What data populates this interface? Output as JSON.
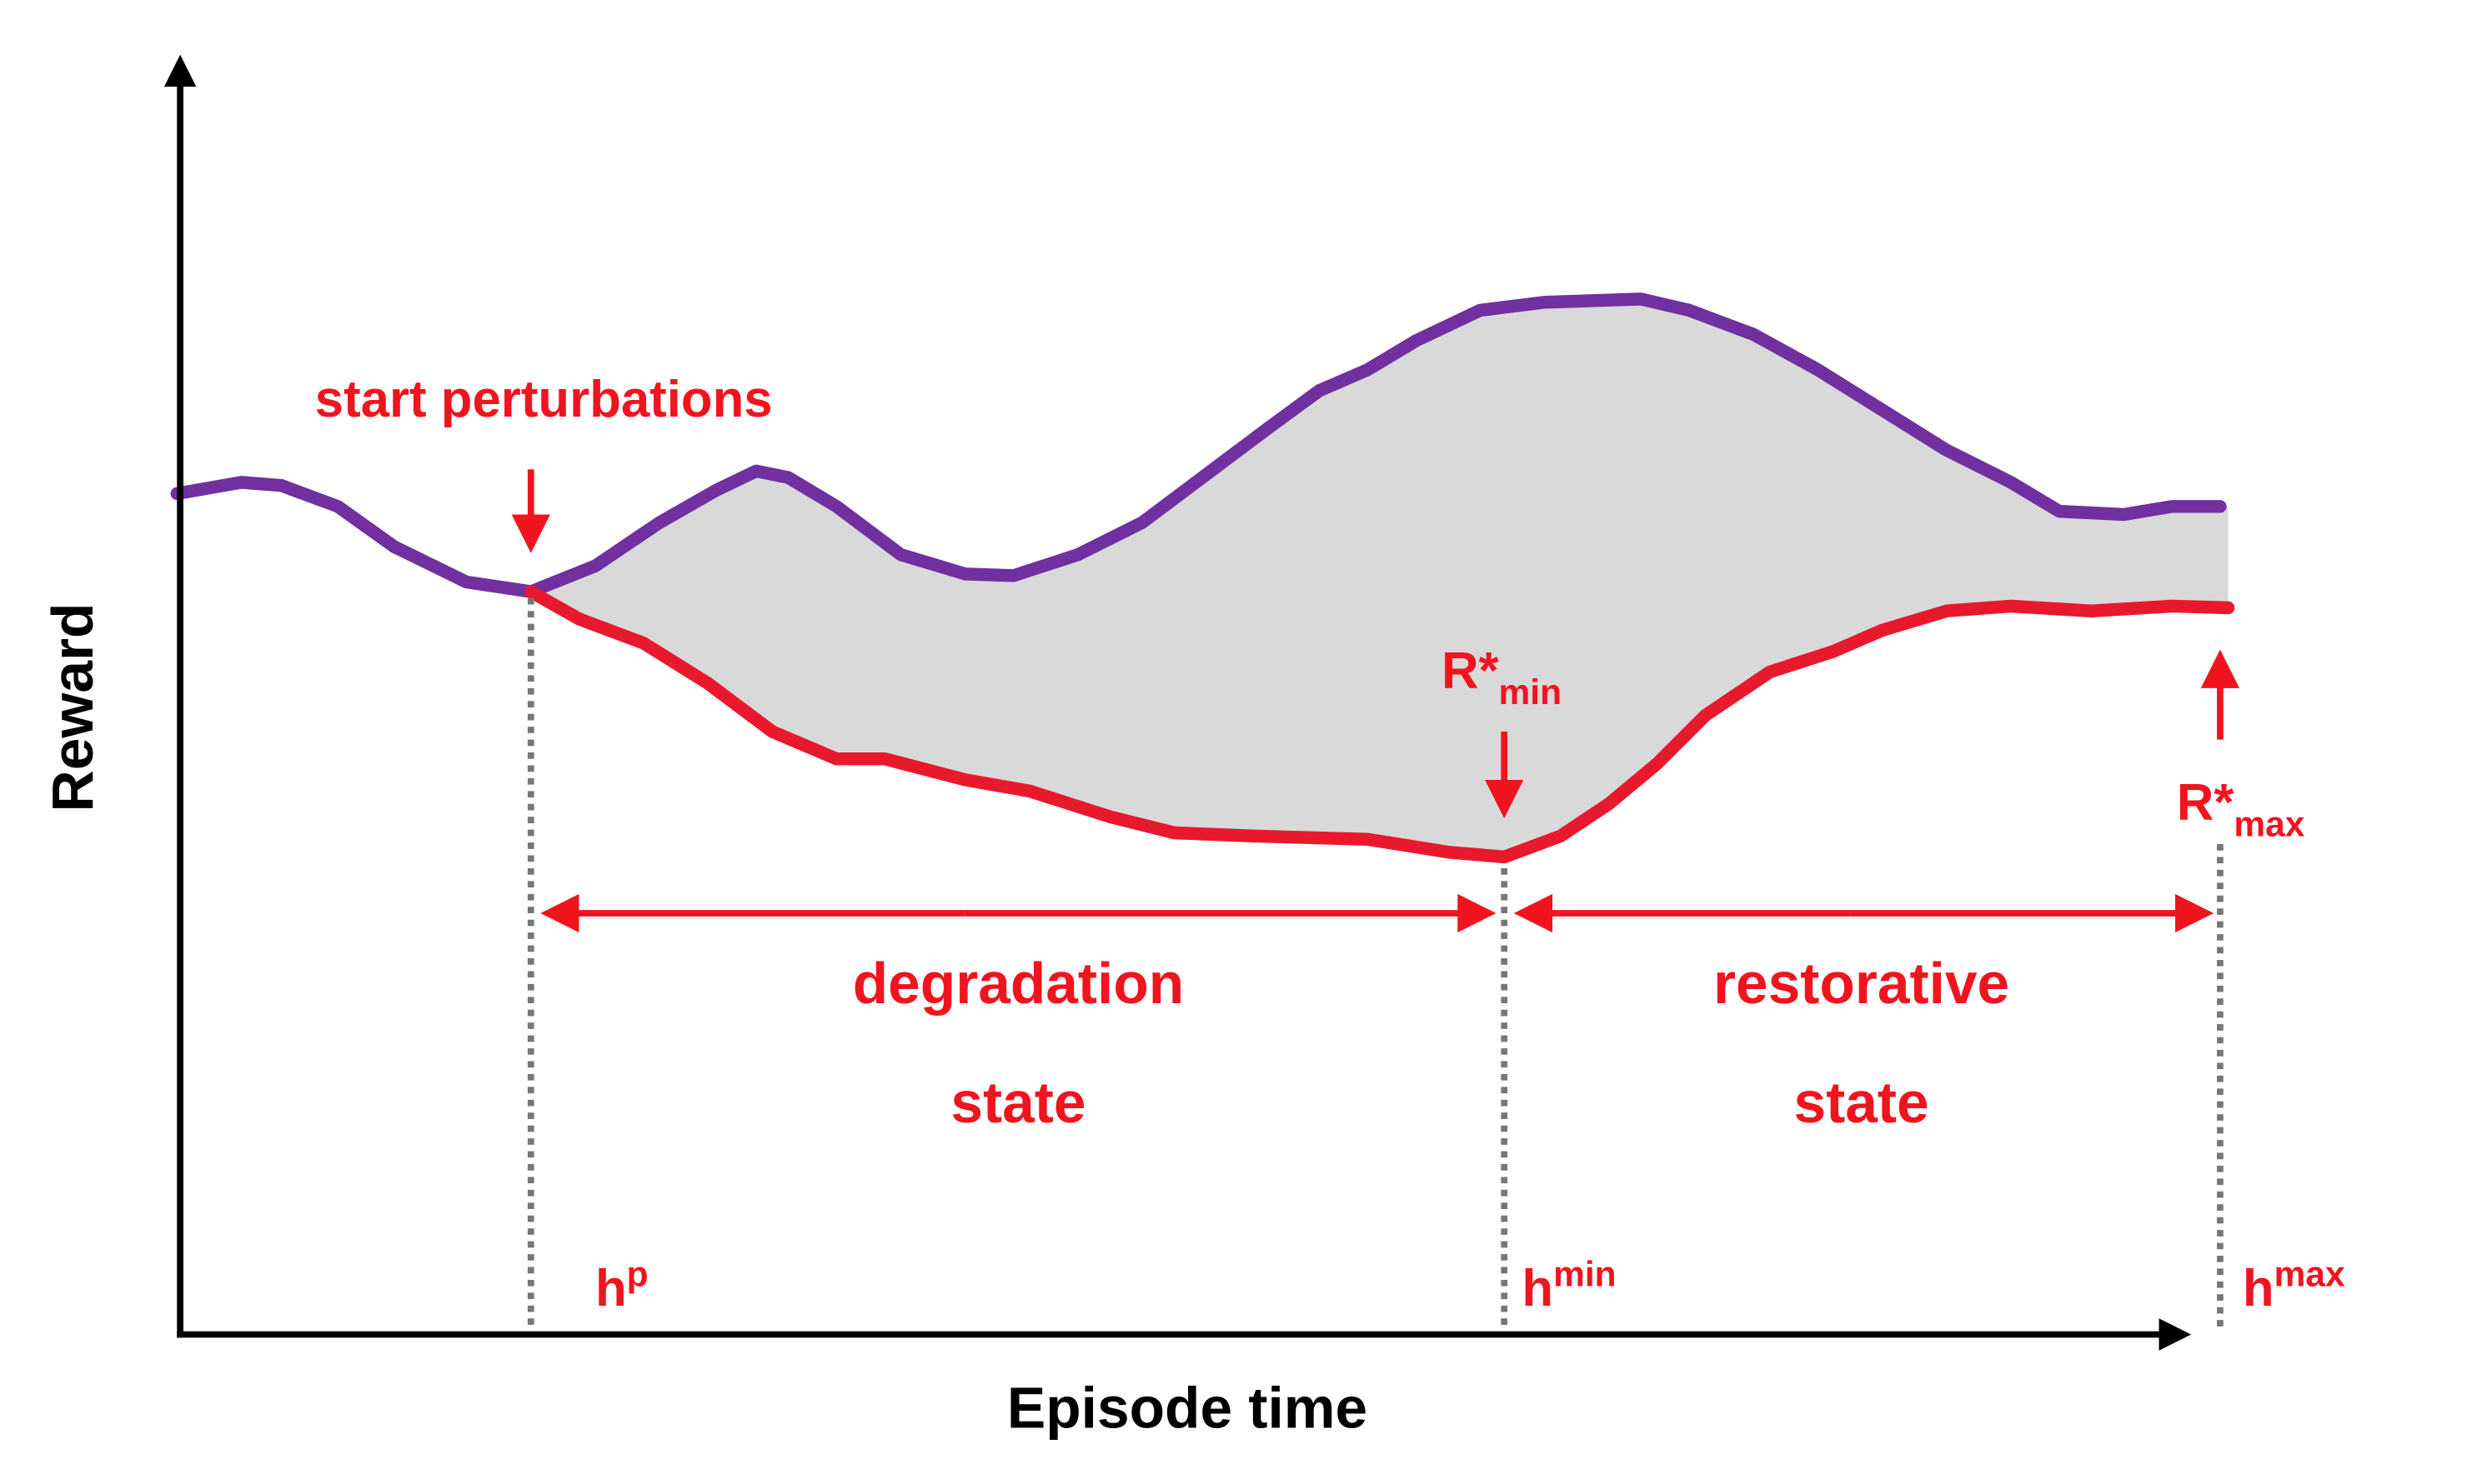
{
  "axes": {
    "y_label": "Reward",
    "x_label": "Episode time"
  },
  "annotations": {
    "start": "start perturbations",
    "degradation": {
      "line1": "degradation",
      "line2": "state"
    },
    "restorative": {
      "line1": "restorative",
      "line2": "state"
    },
    "r_min": {
      "base": "R*",
      "sub": "min"
    },
    "r_max": {
      "base": "R*",
      "sub": "max"
    },
    "h_p": {
      "base": "h",
      "sup": "p"
    },
    "h_min": {
      "base": "h",
      "sup": "min"
    },
    "h_max": {
      "base": "h",
      "sup": "max"
    }
  }
}
